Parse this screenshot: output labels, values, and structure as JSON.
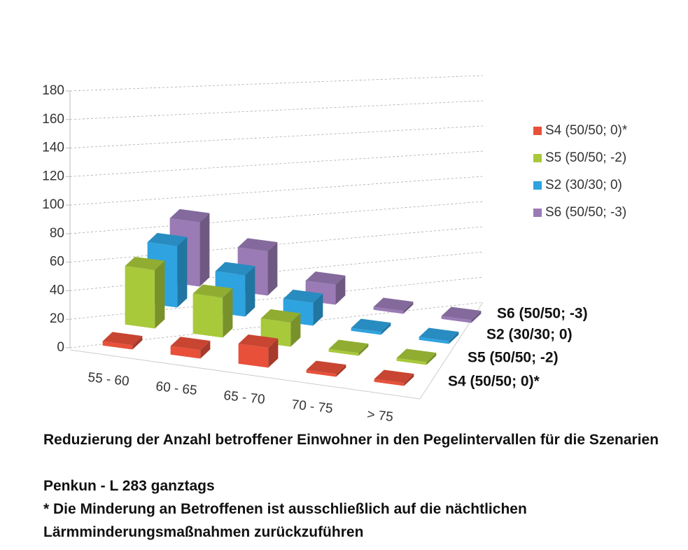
{
  "chart_data": {
    "type": "bar3d",
    "categories": [
      "55 - 60",
      "60 - 65",
      "65 - 70",
      "70 - 75",
      "> 75"
    ],
    "series": [
      {
        "name": "S4 (50/50; 0)*",
        "color": "#e8503a",
        "values": [
          3,
          6,
          14,
          2,
          2
        ]
      },
      {
        "name": "S5 (50/50; -2)",
        "color": "#a8c93a",
        "values": [
          41,
          28,
          17,
          2,
          2
        ]
      },
      {
        "name": "S2 (30/30; 0)",
        "color": "#2ea3e0",
        "values": [
          43,
          29,
          16,
          2,
          2
        ]
      },
      {
        "name": "S6 (50/50; -3)",
        "color": "#9a7bb5",
        "values": [
          45,
          31,
          14,
          2,
          2
        ]
      }
    ],
    "ylim": [
      0,
      180
    ],
    "yticks": [
      0,
      20,
      40,
      60,
      80,
      100,
      120,
      140,
      160,
      180
    ],
    "grid": true,
    "legend": "right",
    "title": "Reduzierung der Anzahl betroffener  Einwohner in den Pegelintervallen für die Szenarien",
    "subtitle": "Penkun - L 283 ganztags",
    "note": "* Die Minderung an Betroffenen ist ausschließlich auf die nächtlichen Lärmminderungsmaßnahmen zurückzuführen"
  }
}
